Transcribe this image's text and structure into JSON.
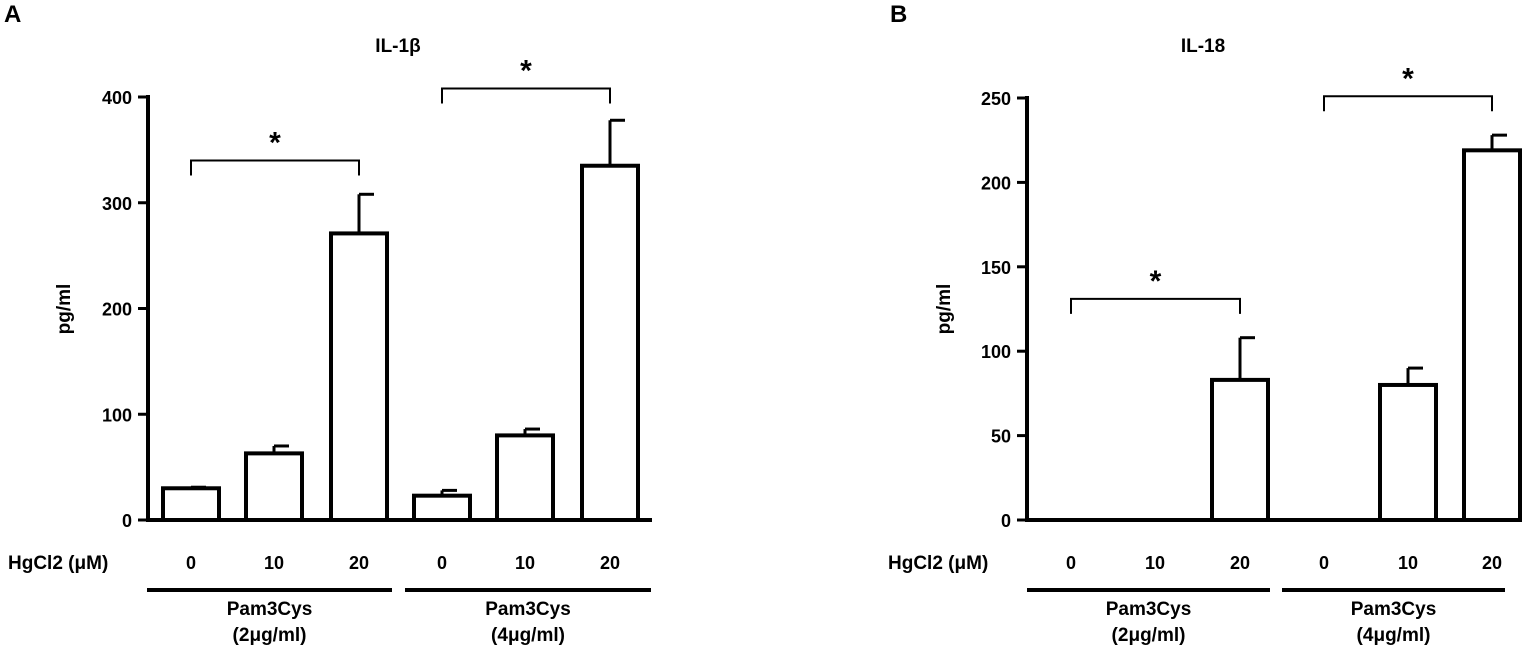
{
  "chart_data": [
    {
      "panel_label": "A",
      "type": "bar",
      "title": "IL-1β",
      "ylabel": "pg/ml",
      "ylim": [
        0,
        400
      ],
      "yticks": [
        "0",
        "100",
        "200",
        "300",
        "400"
      ],
      "x_axis_label": "HgCl2 (μM)",
      "categories": [
        "0",
        "10",
        "20",
        "0",
        "10",
        "20"
      ],
      "values": [
        30,
        63,
        271,
        23,
        80,
        335
      ],
      "errors": [
        1,
        7,
        37,
        5,
        6,
        43
      ],
      "groups": [
        {
          "line1": "Pam3Cys",
          "line2": "(2μg/ml)"
        },
        {
          "line1": "Pam3Cys",
          "line2": "(4μg/ml)"
        }
      ],
      "significance": [
        {
          "from": 0,
          "to": 2,
          "y": 340,
          "label": "*"
        },
        {
          "from": 3,
          "to": 5,
          "y": 408,
          "label": "*"
        }
      ]
    },
    {
      "panel_label": "B",
      "type": "bar",
      "title": "IL-18",
      "ylabel": "pg/ml",
      "ylim": [
        0,
        250
      ],
      "yticks": [
        "0",
        "50",
        "100",
        "150",
        "200",
        "250"
      ],
      "x_axis_label": "HgCl2 (μM)",
      "categories": [
        "0",
        "10",
        "20",
        "0",
        "10",
        "20"
      ],
      "values": [
        0,
        0,
        83,
        0,
        80,
        219
      ],
      "errors": [
        0,
        0,
        25,
        0,
        10,
        9
      ],
      "groups": [
        {
          "line1": "Pam3Cys",
          "line2": "(2μg/ml)"
        },
        {
          "line1": "Pam3Cys",
          "line2": "(4μg/ml)"
        }
      ],
      "significance": [
        {
          "from": 0,
          "to": 2,
          "y": 131,
          "label": "*"
        },
        {
          "from": 3,
          "to": 5,
          "y": 251,
          "label": "*"
        }
      ]
    }
  ]
}
